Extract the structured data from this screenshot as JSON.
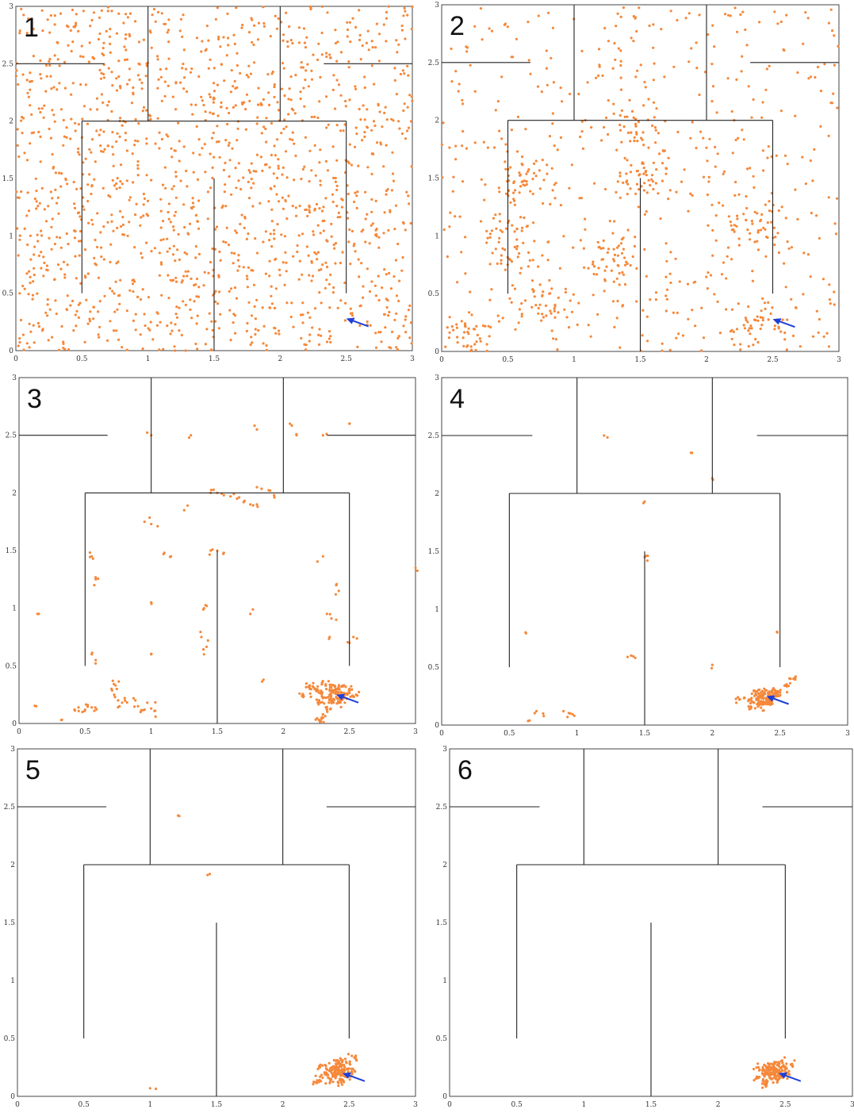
{
  "chart_data": [
    {
      "type": "scatter",
      "panel_label": "1",
      "xlim": [
        0,
        3
      ],
      "ylim": [
        0,
        3
      ],
      "xticks": [
        "0",
        "0.5",
        "1",
        "1.5",
        "2",
        "2.5",
        "3"
      ],
      "yticks": [
        "0",
        "0.5",
        "1",
        "1.5",
        "2",
        "2.5",
        "3"
      ],
      "point_color": "#f5883a",
      "arrow_color": "#1f3fd6",
      "arrow_target": [
        2.5,
        0.28
      ],
      "distribution": {
        "mode": "uniform",
        "count": 1500
      }
    },
    {
      "type": "scatter",
      "panel_label": "2",
      "xlim": [
        0,
        3
      ],
      "ylim": [
        0,
        3
      ],
      "xticks": [
        "0",
        "0.5",
        "1",
        "1.5",
        "2",
        "2.5",
        "3"
      ],
      "yticks": [
        "0",
        "0.5",
        "1",
        "1.5",
        "2",
        "2.5",
        "3"
      ],
      "point_color": "#f5883a",
      "arrow_color": "#1f3fd6",
      "arrow_target": [
        2.5,
        0.28
      ],
      "distribution": {
        "mode": "clumped",
        "count": 900,
        "clusters": [
          [
            0.5,
            0.9
          ],
          [
            0.75,
            0.4
          ],
          [
            1.5,
            1.5
          ],
          [
            2.4,
            0.25
          ],
          [
            1.5,
            2.0
          ],
          [
            0.6,
            1.45
          ],
          [
            2.4,
            1.1
          ],
          [
            0.2,
            0.1
          ],
          [
            1.25,
            0.8
          ]
        ]
      }
    },
    {
      "type": "scatter",
      "panel_label": "3",
      "xlim": [
        0,
        3
      ],
      "ylim": [
        0,
        3
      ],
      "xticks": [
        "0",
        "0.5",
        "1",
        "1.5",
        "2",
        "2.5",
        "3"
      ],
      "yticks": [
        "0",
        "0.5",
        "1",
        "1.5",
        "2",
        "2.5",
        "3"
      ],
      "point_color": "#f5883a",
      "arrow_color": "#1f3fd6",
      "arrow_target": [
        2.4,
        0.25
      ],
      "points": [
        [
          0.45,
          0.14
        ],
        [
          0.5,
          0.12
        ],
        [
          0.55,
          0.14
        ],
        [
          0.48,
          0.1
        ],
        [
          0.52,
          0.16
        ],
        [
          0.42,
          0.12
        ],
        [
          0.57,
          0.11
        ],
        [
          0.7,
          0.3
        ],
        [
          0.72,
          0.25
        ],
        [
          0.75,
          0.2
        ],
        [
          0.78,
          0.18
        ],
        [
          0.73,
          0.33
        ],
        [
          0.71,
          0.37
        ],
        [
          0.76,
          0.15
        ],
        [
          0.8,
          0.22
        ],
        [
          0.9,
          0.15
        ],
        [
          0.95,
          0.12
        ],
        [
          1.0,
          0.13
        ],
        [
          0.92,
          0.1
        ],
        [
          0.97,
          0.18
        ],
        [
          1.03,
          0.11
        ],
        [
          0.88,
          0.2
        ],
        [
          0.55,
          1.45
        ],
        [
          0.56,
          1.43
        ],
        [
          0.58,
          1.25
        ],
        [
          0.57,
          1.2
        ],
        [
          0.55,
          0.6
        ],
        [
          0.58,
          0.55
        ],
        [
          0.95,
          1.75
        ],
        [
          1.0,
          1.73
        ],
        [
          1.1,
          1.48
        ],
        [
          1.15,
          1.45
        ],
        [
          1.0,
          1.05
        ],
        [
          1.0,
          0.6
        ],
        [
          1.4,
          1.0
        ],
        [
          1.42,
          1.02
        ],
        [
          1.38,
          0.75
        ],
        [
          1.43,
          0.72
        ],
        [
          1.5,
          1.5
        ],
        [
          1.55,
          1.48
        ],
        [
          1.45,
          1.5
        ],
        [
          1.5,
          2.0
        ],
        [
          1.55,
          1.98
        ],
        [
          1.45,
          2.0
        ],
        [
          1.6,
          1.97
        ],
        [
          1.65,
          1.95
        ],
        [
          1.7,
          1.92
        ],
        [
          1.75,
          1.9
        ],
        [
          1.8,
          1.9
        ],
        [
          1.9,
          2.02
        ],
        [
          1.93,
          1.98
        ],
        [
          1.25,
          1.85
        ],
        [
          1.3,
          2.5
        ],
        [
          1.0,
          2.5
        ],
        [
          1.8,
          2.05
        ],
        [
          1.8,
          2.55
        ],
        [
          2.1,
          2.5
        ],
        [
          2.3,
          2.5
        ],
        [
          2.5,
          2.6
        ],
        [
          2.05,
          2.6
        ],
        [
          2.3,
          1.45
        ],
        [
          2.4,
          1.2
        ],
        [
          2.42,
          1.15
        ],
        [
          2.33,
          0.95
        ],
        [
          2.4,
          0.9
        ],
        [
          2.35,
          0.75
        ],
        [
          2.5,
          0.7
        ],
        [
          2.53,
          0.75
        ],
        [
          2.2,
          0.3
        ],
        [
          2.25,
          0.28
        ],
        [
          2.3,
          0.22
        ],
        [
          2.35,
          0.25
        ],
        [
          2.4,
          0.3
        ],
        [
          2.45,
          0.22
        ],
        [
          2.38,
          0.18
        ],
        [
          2.42,
          0.27
        ],
        [
          2.48,
          0.26
        ],
        [
          2.33,
          0.12
        ],
        [
          2.3,
          0.05
        ],
        [
          2.27,
          0.03
        ],
        [
          2.36,
          0.2
        ],
        [
          2.44,
          0.32
        ],
        [
          2.5,
          0.3
        ],
        [
          2.28,
          0.18
        ],
        [
          2.32,
          0.34
        ],
        [
          2.4,
          0.23
        ],
        [
          2.15,
          0.25
        ],
        [
          2.2,
          0.33
        ],
        [
          2.55,
          0.25
        ],
        [
          2.43,
          0.19
        ],
        [
          2.37,
          0.29
        ],
        [
          2.46,
          0.24
        ],
        [
          2.29,
          0.26
        ],
        [
          2.39,
          0.32
        ],
        [
          0.15,
          0.95
        ],
        [
          0.13,
          0.15
        ],
        [
          3.0,
          1.35
        ],
        [
          1.75,
          0.95
        ],
        [
          1.85,
          0.38
        ],
        [
          1.4,
          0.6
        ],
        [
          0.32,
          0.03
        ]
      ]
    },
    {
      "type": "scatter",
      "panel_label": "4",
      "xlim": [
        0,
        3
      ],
      "ylim": [
        0,
        3
      ],
      "xticks": [
        "0",
        "0.5",
        "1",
        "1.5",
        "2",
        "2.5",
        "3"
      ],
      "yticks": [
        "0",
        "0.5",
        "1",
        "1.5",
        "2",
        "2.5",
        "3"
      ],
      "point_color": "#f5883a",
      "arrow_color": "#1f3fd6",
      "arrow_target": [
        2.4,
        0.25
      ],
      "points": [
        [
          2.35,
          0.25
        ],
        [
          2.4,
          0.22
        ],
        [
          2.42,
          0.28
        ],
        [
          2.45,
          0.25
        ],
        [
          2.38,
          0.18
        ],
        [
          2.3,
          0.2
        ],
        [
          2.32,
          0.27
        ],
        [
          2.4,
          0.3
        ],
        [
          2.44,
          0.19
        ],
        [
          2.48,
          0.26
        ],
        [
          2.36,
          0.15
        ],
        [
          2.28,
          0.22
        ],
        [
          2.41,
          0.23
        ],
        [
          2.39,
          0.27
        ],
        [
          2.34,
          0.21
        ],
        [
          2.46,
          0.3
        ],
        [
          2.37,
          0.24
        ],
        [
          2.43,
          0.21
        ],
        [
          2.33,
          0.29
        ],
        [
          2.5,
          0.28
        ],
        [
          2.27,
          0.16
        ],
        [
          2.55,
          0.35
        ],
        [
          2.6,
          0.4
        ],
        [
          2.2,
          0.22
        ],
        [
          0.7,
          0.12
        ],
        [
          0.75,
          0.1
        ],
        [
          0.9,
          0.12
        ],
        [
          0.95,
          0.1
        ],
        [
          0.98,
          0.08
        ],
        [
          0.65,
          0.04
        ],
        [
          0.62,
          0.8
        ],
        [
          1.4,
          0.6
        ],
        [
          1.43,
          0.58
        ],
        [
          1.5,
          1.45
        ],
        [
          1.52,
          1.42
        ],
        [
          1.5,
          1.93
        ],
        [
          1.85,
          2.35
        ],
        [
          2.0,
          2.13
        ],
        [
          2.48,
          0.8
        ],
        [
          1.2,
          2.5
        ],
        [
          2.0,
          0.52
        ]
      ]
    },
    {
      "type": "scatter",
      "panel_label": "5",
      "xlim": [
        0,
        3
      ],
      "ylim": [
        0,
        3
      ],
      "xticks": [
        "0",
        "0.5",
        "1",
        "1.5",
        "2",
        "2.5",
        "3"
      ],
      "yticks": [
        "0",
        "0.5",
        "1",
        "1.5",
        "2",
        "2.5",
        "3"
      ],
      "point_color": "#f5883a",
      "arrow_color": "#1f3fd6",
      "arrow_target": [
        2.45,
        0.2
      ],
      "points": [
        [
          2.4,
          0.2
        ],
        [
          2.45,
          0.22
        ],
        [
          2.42,
          0.25
        ],
        [
          2.38,
          0.18
        ],
        [
          2.47,
          0.17
        ],
        [
          2.35,
          0.22
        ],
        [
          2.43,
          0.15
        ],
        [
          2.4,
          0.28
        ],
        [
          2.5,
          0.24
        ],
        [
          2.33,
          0.2
        ],
        [
          2.44,
          0.12
        ],
        [
          2.37,
          0.25
        ],
        [
          2.48,
          0.29
        ],
        [
          2.3,
          0.16
        ],
        [
          2.41,
          0.19
        ],
        [
          2.46,
          0.21
        ],
        [
          2.39,
          0.23
        ],
        [
          2.36,
          0.14
        ],
        [
          2.44,
          0.27
        ],
        [
          2.52,
          0.2
        ],
        [
          2.28,
          0.25
        ],
        [
          2.55,
          0.35
        ],
        [
          2.25,
          0.12
        ],
        [
          2.42,
          0.3
        ],
        [
          1.0,
          0.07
        ],
        [
          1.45,
          1.92
        ],
        [
          1.22,
          2.42
        ]
      ]
    },
    {
      "type": "scatter",
      "panel_label": "6",
      "xlim": [
        0,
        3
      ],
      "ylim": [
        0,
        3
      ],
      "xticks": [
        "0",
        "0.5",
        "1",
        "1.5",
        "2",
        "2.5",
        "3"
      ],
      "yticks": [
        "0",
        "0.5",
        "1",
        "1.5",
        "2",
        "2.5",
        "3"
      ],
      "point_color": "#f5883a",
      "arrow_color": "#1f3fd6",
      "arrow_target": [
        2.45,
        0.2
      ],
      "points": [
        [
          2.4,
          0.2
        ],
        [
          2.45,
          0.22
        ],
        [
          2.42,
          0.25
        ],
        [
          2.38,
          0.18
        ],
        [
          2.47,
          0.17
        ],
        [
          2.35,
          0.22
        ],
        [
          2.43,
          0.15
        ],
        [
          2.4,
          0.28
        ],
        [
          2.5,
          0.24
        ],
        [
          2.33,
          0.2
        ],
        [
          2.44,
          0.12
        ],
        [
          2.37,
          0.25
        ],
        [
          2.48,
          0.29
        ],
        [
          2.3,
          0.16
        ],
        [
          2.41,
          0.19
        ],
        [
          2.46,
          0.21
        ],
        [
          2.39,
          0.23
        ],
        [
          2.36,
          0.14
        ],
        [
          2.44,
          0.27
        ],
        [
          2.52,
          0.2
        ],
        [
          2.3,
          0.25
        ],
        [
          2.55,
          0.28
        ],
        [
          2.35,
          0.1
        ]
      ]
    }
  ]
}
